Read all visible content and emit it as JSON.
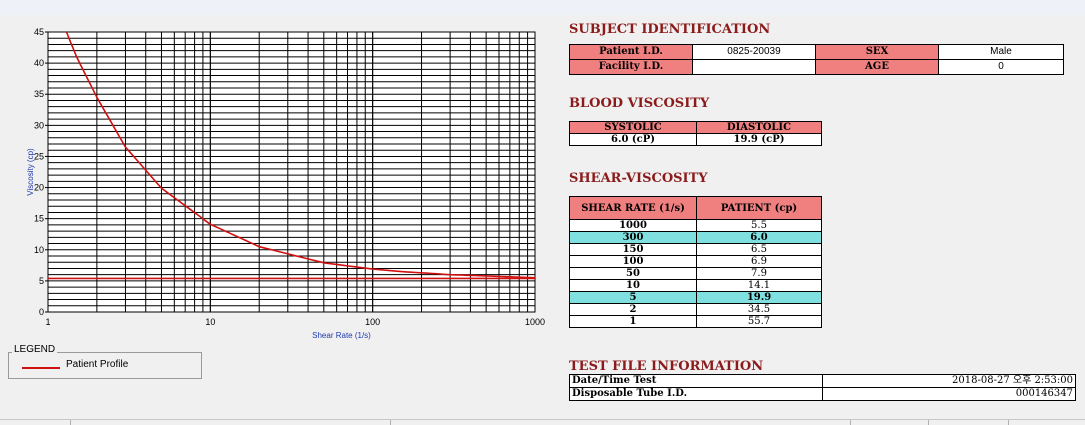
{
  "chart_data": {
    "type": "line",
    "xlabel": "Shear Rate (1/s)",
    "ylabel": "Viscosity (cp)",
    "x_scale": "log",
    "xlim": [
      1,
      1000
    ],
    "ylim": [
      0,
      45
    ],
    "x_ticks": [
      "1",
      "10",
      "100",
      "1000"
    ],
    "y_ticks": [
      "0",
      "5",
      "10",
      "15",
      "20",
      "25",
      "30",
      "35",
      "40",
      "45"
    ],
    "grid": true,
    "series": [
      {
        "name": "Patient Profile",
        "color": "#d01010",
        "x": [
          1.3,
          1.5,
          2,
          3,
          5,
          10,
          20,
          50,
          100,
          150,
          300,
          500,
          1000
        ],
        "y": [
          45,
          41,
          34.5,
          26.5,
          19.9,
          14.1,
          10.5,
          7.9,
          6.9,
          6.5,
          6.0,
          5.8,
          5.5
        ]
      },
      {
        "name": "",
        "color": "#d01010",
        "x": [
          1,
          1000
        ],
        "y": [
          5.4,
          5.4
        ]
      }
    ]
  },
  "legend": {
    "title": "LEGEND",
    "entry": "Patient Profile"
  },
  "subject": {
    "title": "SUBJECT IDENTIFICATION",
    "patient_id_label": "Patient I.D.",
    "patient_id_value": "0825-20039",
    "sex_label": "SEX",
    "sex_value": "Male",
    "facility_id_label": "Facility I.D.",
    "facility_id_value": "",
    "age_label": "AGE",
    "age_value": "0"
  },
  "blood": {
    "title": "BLOOD VISCOSITY",
    "systolic_label": "SYSTOLIC",
    "diastolic_label": "DIASTOLIC",
    "systolic_value": "6.0 (cP)",
    "diastolic_value": "19.9 (cP)"
  },
  "shear": {
    "title": "SHEAR-VISCOSITY",
    "col_rate": "SHEAR RATE (1/s)",
    "col_patient": "PATIENT (cp)",
    "rows": [
      {
        "rate": "1000",
        "value": "5.5",
        "hl": false
      },
      {
        "rate": "300",
        "value": "6.0",
        "hl": true
      },
      {
        "rate": "150",
        "value": "6.5",
        "hl": false
      },
      {
        "rate": "100",
        "value": "6.9",
        "hl": false
      },
      {
        "rate": "50",
        "value": "7.9",
        "hl": false
      },
      {
        "rate": "10",
        "value": "14.1",
        "hl": false
      },
      {
        "rate": "5",
        "value": "19.9",
        "hl": true
      },
      {
        "rate": "2",
        "value": "34.5",
        "hl": false
      },
      {
        "rate": "1",
        "value": "55.7",
        "hl": false
      }
    ]
  },
  "test_file": {
    "title": "TEST FILE INFORMATION",
    "datetime_label": "Date/Time Test",
    "datetime_value": "2018-08-27  오후 2:53:00",
    "tube_label": "Disposable Tube I.D.",
    "tube_value": "000146347"
  }
}
